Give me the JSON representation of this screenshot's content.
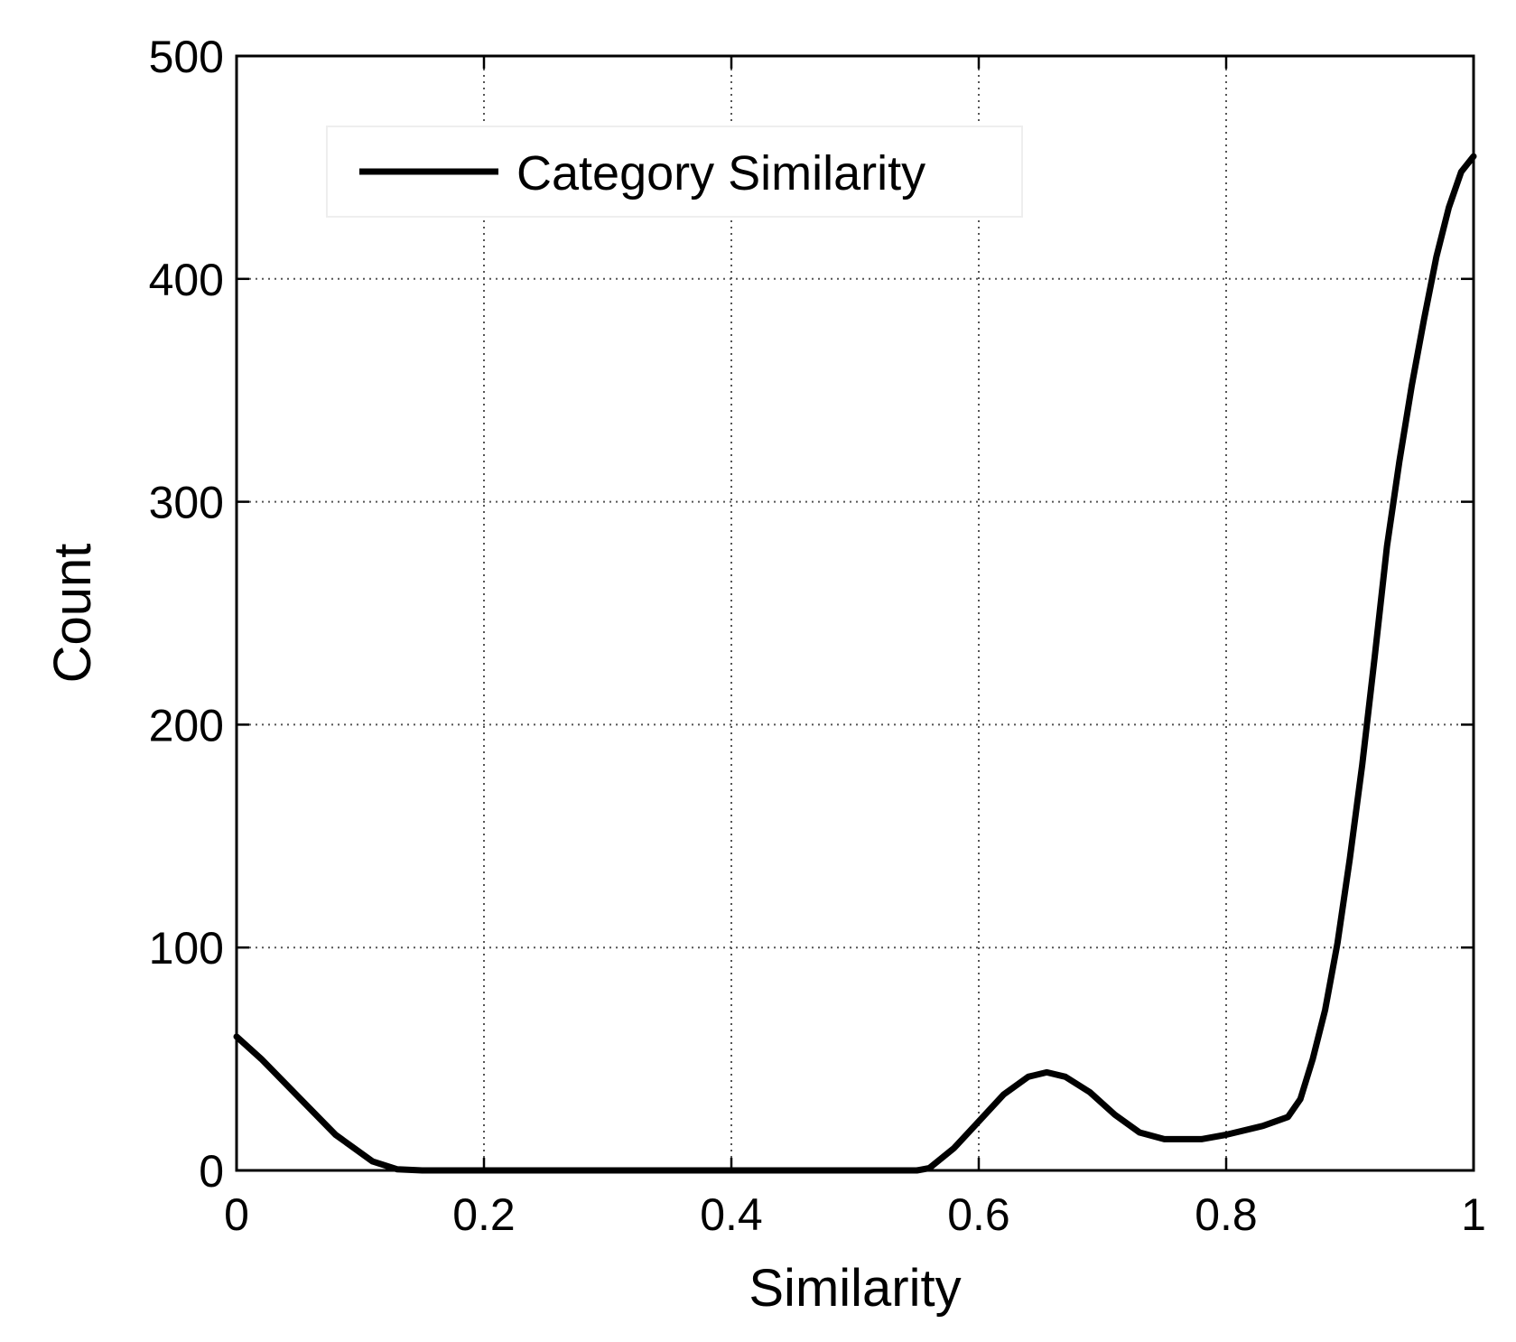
{
  "chart_data": {
    "type": "line",
    "title": "",
    "xlabel": "Similarity",
    "ylabel": "Count",
    "xlim": [
      0,
      1
    ],
    "ylim": [
      0,
      500
    ],
    "xticks": [
      0,
      0.2,
      0.4,
      0.6,
      0.8,
      1
    ],
    "xtick_labels": [
      "0",
      "0.2",
      "0.4",
      "0.6",
      "0.8",
      "1"
    ],
    "yticks": [
      0,
      100,
      200,
      300,
      400,
      500
    ],
    "ytick_labels": [
      "0",
      "100",
      "200",
      "300",
      "400",
      "500"
    ],
    "grid": true,
    "legend_position": "top-left",
    "line_color": "#000000",
    "series": [
      {
        "name": "Category Similarity",
        "x": [
          0,
          0.02,
          0.05,
          0.08,
          0.11,
          0.13,
          0.15,
          0.2,
          0.3,
          0.4,
          0.5,
          0.55,
          0.56,
          0.58,
          0.6,
          0.62,
          0.64,
          0.655,
          0.67,
          0.69,
          0.71,
          0.73,
          0.75,
          0.78,
          0.8,
          0.83,
          0.85,
          0.86,
          0.87,
          0.88,
          0.89,
          0.9,
          0.91,
          0.92,
          0.93,
          0.94,
          0.95,
          0.96,
          0.97,
          0.98,
          0.99,
          1.0
        ],
        "y": [
          60,
          50,
          33,
          16,
          4,
          0.5,
          0,
          0,
          0,
          0,
          0,
          0,
          1,
          10,
          22,
          34,
          42,
          44,
          42,
          35,
          25,
          17,
          14,
          14,
          16,
          20,
          24,
          32,
          50,
          72,
          102,
          140,
          182,
          230,
          280,
          318,
          352,
          382,
          410,
          432,
          448,
          455
        ]
      }
    ]
  }
}
